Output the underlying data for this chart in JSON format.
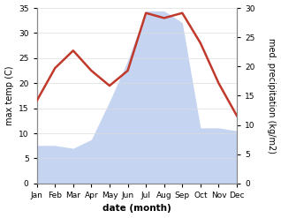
{
  "months": [
    "Jan",
    "Feb",
    "Mar",
    "Apr",
    "May",
    "Jun",
    "Jul",
    "Aug",
    "Sep",
    "Oct",
    "Nov",
    "Dec"
  ],
  "temperature": [
    16.5,
    23.0,
    26.5,
    22.5,
    19.5,
    22.5,
    34.0,
    33.0,
    34.0,
    28.0,
    20.0,
    13.5
  ],
  "precipitation": [
    6.5,
    6.5,
    6.0,
    7.5,
    14.0,
    21.0,
    29.5,
    29.5,
    27.5,
    9.5,
    9.5,
    9.0
  ],
  "temp_color": "#c0392b",
  "precip_fill_color": "#c5d4f0",
  "left_ylim": [
    0,
    35
  ],
  "right_ylim": [
    0,
    30
  ],
  "left_yticks": [
    0,
    5,
    10,
    15,
    20,
    25,
    30,
    35
  ],
  "right_yticks": [
    0,
    5,
    10,
    15,
    20,
    25,
    30
  ],
  "xlabel": "date (month)",
  "ylabel_left": "max temp (C)",
  "ylabel_right": "med. precipitation (kg/m2)",
  "line_width": 1.8,
  "fig_width": 3.18,
  "fig_height": 2.47,
  "dpi": 100,
  "bg_color": "#f0f0f0",
  "spine_color": "#aaaaaa"
}
